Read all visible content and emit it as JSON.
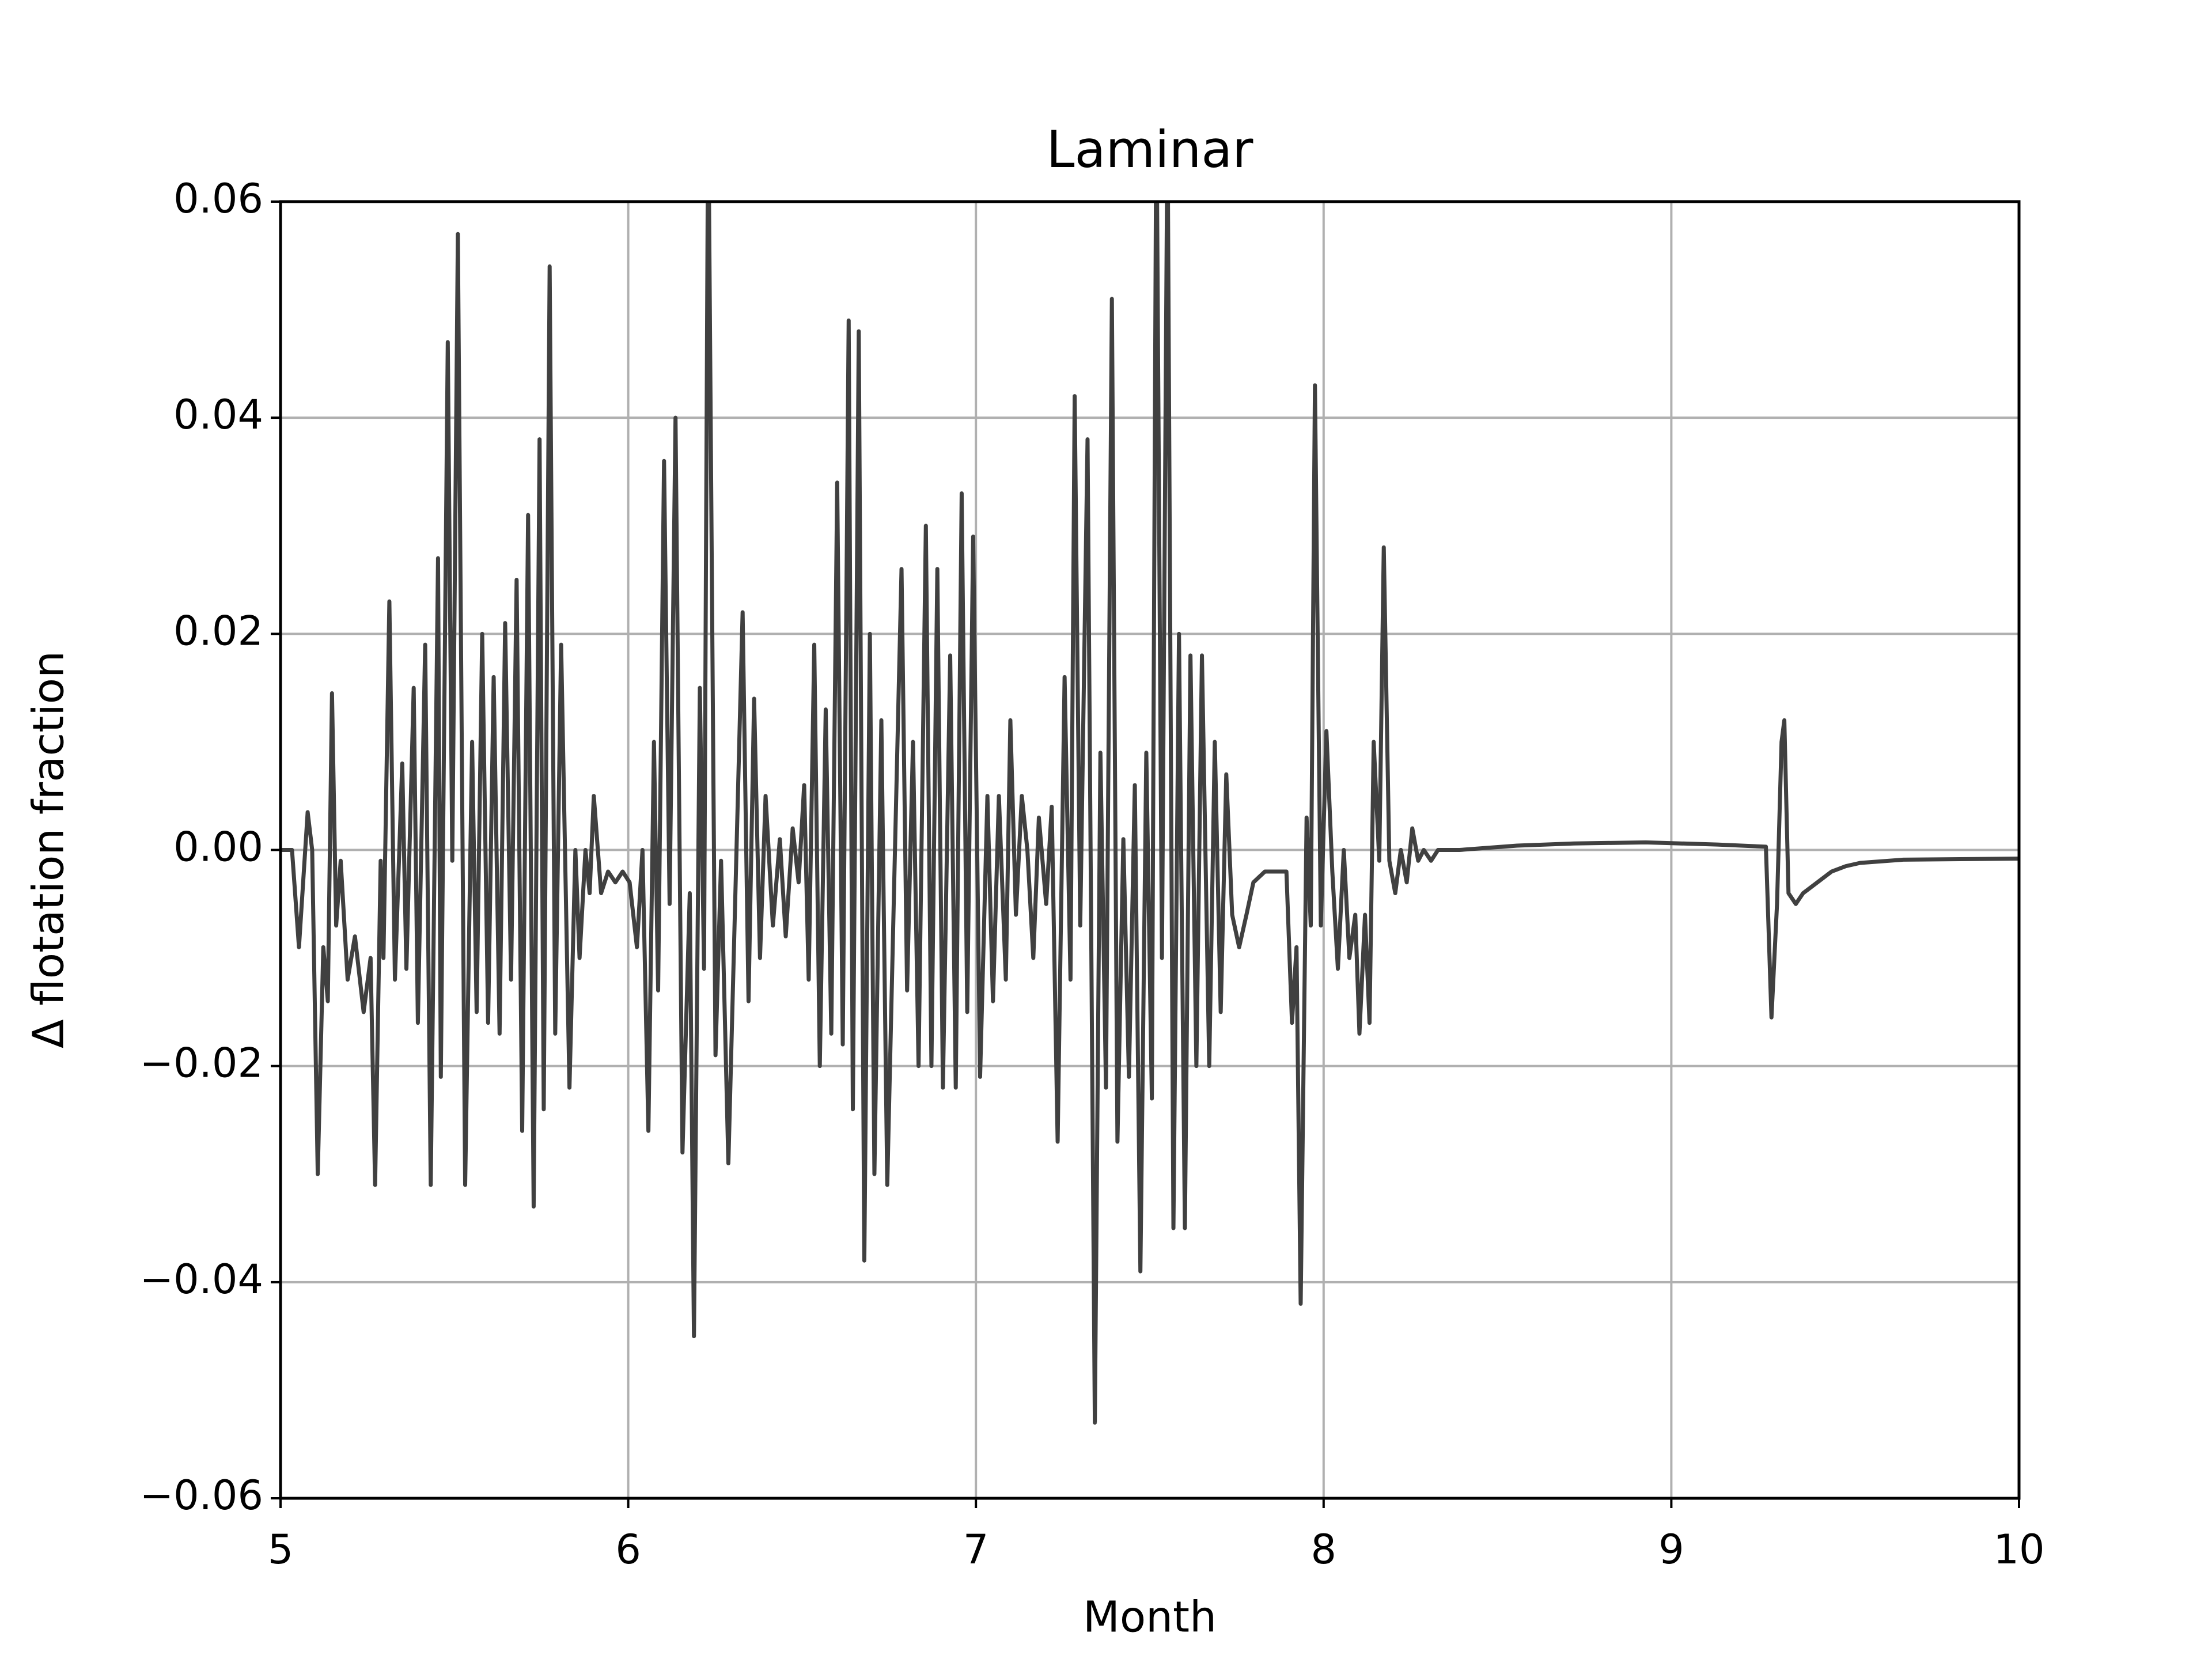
{
  "chart_data": {
    "type": "line",
    "title": "Laminar",
    "x_label": "Month",
    "y_label": "Δ flotation fraction",
    "xlim": [
      5,
      10
    ],
    "xticks": [
      5,
      6,
      7,
      8,
      9,
      10
    ],
    "ylim": [
      -0.06,
      0.06
    ],
    "yticks": [
      {
        "value": -0.06,
        "label": "−0.06"
      },
      {
        "value": -0.04,
        "label": "−0.04"
      },
      {
        "value": -0.02,
        "label": "−0.02"
      },
      {
        "value": 0,
        "label": "0.00"
      },
      0.02,
      0.04,
      0.06
    ],
    "grid": true,
    "x": [
      5.0,
      5.033,
      5.053,
      5.078,
      5.091,
      5.107,
      5.123,
      5.136,
      5.148,
      5.16,
      5.173,
      5.193,
      5.214,
      5.239,
      5.259,
      5.272,
      5.288,
      5.296,
      5.313,
      5.329,
      5.35,
      5.362,
      5.383,
      5.395,
      5.416,
      5.432,
      5.453,
      5.461,
      5.481,
      5.494,
      5.51,
      5.531,
      5.551,
      5.564,
      5.58,
      5.597,
      5.613,
      5.63,
      5.646,
      5.663,
      5.679,
      5.695,
      5.712,
      5.728,
      5.745,
      5.757,
      5.774,
      5.79,
      5.807,
      5.831,
      5.848,
      5.86,
      5.877,
      5.889,
      5.901,
      5.922,
      5.942,
      5.963,
      5.984,
      6.004,
      6.025,
      6.041,
      6.058,
      6.074,
      6.086,
      6.103,
      6.119,
      6.136,
      6.156,
      6.177,
      6.189,
      6.206,
      6.218,
      6.23,
      6.251,
      6.267,
      6.288,
      6.309,
      6.329,
      6.346,
      6.362,
      6.379,
      6.395,
      6.416,
      6.436,
      6.453,
      6.473,
      6.49,
      6.506,
      6.519,
      6.535,
      6.551,
      6.568,
      6.584,
      6.601,
      6.617,
      6.634,
      6.646,
      6.663,
      6.679,
      6.695,
      6.708,
      6.728,
      6.745,
      6.765,
      6.786,
      6.802,
      6.819,
      6.835,
      6.856,
      6.872,
      6.889,
      6.905,
      6.926,
      6.942,
      6.959,
      6.975,
      6.992,
      7.012,
      7.033,
      7.049,
      7.066,
      7.086,
      7.099,
      7.115,
      7.132,
      7.148,
      7.165,
      7.181,
      7.202,
      7.218,
      7.235,
      7.255,
      7.272,
      7.284,
      7.3,
      7.321,
      7.342,
      7.358,
      7.374,
      7.391,
      7.407,
      7.424,
      7.44,
      7.457,
      7.473,
      7.49,
      7.506,
      7.519,
      7.535,
      7.551,
      7.568,
      7.584,
      7.601,
      7.617,
      7.634,
      7.65,
      7.671,
      7.687,
      7.704,
      7.72,
      7.737,
      7.757,
      7.778,
      7.798,
      7.831,
      7.868,
      7.893,
      7.909,
      7.922,
      7.934,
      7.951,
      7.963,
      7.975,
      7.992,
      8.008,
      8.025,
      8.041,
      8.058,
      8.074,
      8.091,
      8.103,
      8.119,
      8.132,
      8.144,
      8.16,
      8.173,
      8.189,
      8.206,
      8.222,
      8.239,
      8.255,
      8.272,
      8.288,
      8.309,
      8.329,
      8.391,
      8.556,
      8.72,
      8.926,
      9.132,
      9.272,
      9.288,
      9.304,
      9.317,
      9.325,
      9.337,
      9.358,
      9.379,
      9.42,
      9.461,
      9.502,
      9.543,
      9.667,
      10.0
    ],
    "series": [
      {
        "color": "#404040",
        "values": [
          0,
          0,
          -0.009,
          0.0035,
          0,
          -0.03,
          -0.009,
          -0.014,
          0.0145,
          -0.007,
          -0.001,
          -0.012,
          -0.008,
          -0.015,
          -0.01,
          -0.031,
          -0.001,
          -0.01,
          0.023,
          -0.012,
          0.008,
          -0.011,
          0.015,
          -0.016,
          0.019,
          -0.031,
          0.027,
          -0.021,
          0.047,
          -0.001,
          0.057,
          -0.031,
          0.01,
          -0.015,
          0.02,
          -0.016,
          0.016,
          -0.017,
          0.021,
          -0.012,
          0.025,
          -0.026,
          0.031,
          -0.033,
          0.038,
          -0.024,
          0.054,
          -0.017,
          0.019,
          -0.022,
          0,
          -0.01,
          0,
          -0.004,
          0.005,
          -0.004,
          -0.002,
          -0.003,
          -0.002,
          -0.003,
          -0.009,
          0,
          -0.026,
          0.01,
          -0.013,
          0.036,
          -0.005,
          0.04,
          -0.028,
          -0.004,
          -0.045,
          0.015,
          -0.011,
          0.07,
          -0.019,
          -0.001,
          -0.029,
          -0.003,
          0.022,
          -0.014,
          0.014,
          -0.01,
          0.005,
          -0.007,
          0.001,
          -0.008,
          0.002,
          -0.003,
          0.006,
          -0.012,
          0.019,
          -0.02,
          0.013,
          -0.017,
          0.034,
          -0.018,
          0.049,
          -0.024,
          0.048,
          -0.038,
          0.02,
          -0.03,
          0.012,
          -0.031,
          -0.003,
          0.026,
          -0.013,
          0.01,
          -0.02,
          0.03,
          -0.02,
          0.026,
          -0.022,
          0.018,
          -0.022,
          0.033,
          -0.015,
          0.029,
          -0.021,
          0.005,
          -0.014,
          0.005,
          -0.012,
          0.012,
          -0.006,
          0.005,
          0,
          -0.01,
          0.003,
          -0.005,
          0.004,
          -0.027,
          0.016,
          -0.012,
          0.042,
          -0.007,
          0.038,
          -0.053,
          0.009,
          -0.022,
          0.051,
          -0.027,
          0.001,
          -0.021,
          0.006,
          -0.039,
          0.009,
          -0.023,
          0.07,
          -0.01,
          0.068,
          -0.035,
          0.02,
          -0.035,
          0.018,
          -0.02,
          0.018,
          -0.02,
          0.01,
          -0.015,
          0.007,
          -0.006,
          -0.009,
          -0.006,
          -0.003,
          -0.002,
          -0.002,
          -0.002,
          -0.016,
          -0.009,
          -0.042,
          0.003,
          -0.007,
          0.043,
          -0.007,
          0.011,
          -0.002,
          -0.011,
          0,
          -0.01,
          -0.006,
          -0.017,
          -0.006,
          -0.016,
          0.01,
          -0.001,
          0.028,
          -0.001,
          -0.004,
          0,
          -0.003,
          0.002,
          -0.001,
          0,
          -0.001,
          0,
          0,
          0.0004,
          0.0006,
          0.0007,
          0.0005,
          0.0003,
          -0.0155,
          -0.005,
          0.01,
          0.012,
          -0.004,
          -0.005,
          -0.004,
          -0.003,
          -0.002,
          -0.0015,
          -0.0012,
          -0.0009,
          -0.0008
        ]
      }
    ]
  }
}
